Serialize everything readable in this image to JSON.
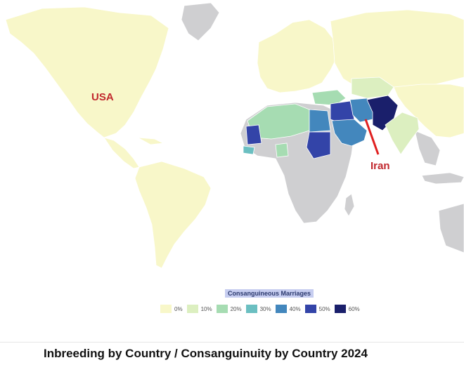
{
  "map": {
    "annotations": [
      {
        "id": "usa",
        "text": "USA"
      },
      {
        "id": "iran",
        "text": "Iran"
      }
    ],
    "arrow_color": "#e02020"
  },
  "legend": {
    "title": "Consanguineous Marriages",
    "items": [
      {
        "label": "0%",
        "color": "#f8f7c9"
      },
      {
        "label": "10%",
        "color": "#dcefc0"
      },
      {
        "label": "20%",
        "color": "#a6dcb2"
      },
      {
        "label": "30%",
        "color": "#6bbfc1"
      },
      {
        "label": "40%",
        "color": "#4387bd"
      },
      {
        "label": "50%",
        "color": "#3344a8"
      },
      {
        "label": "60%",
        "color": "#1a1f6b"
      }
    ],
    "no_data_color": "#cfcfd1"
  },
  "caption": "Inbreeding by Country / Consanguinuity by Country 2024"
}
